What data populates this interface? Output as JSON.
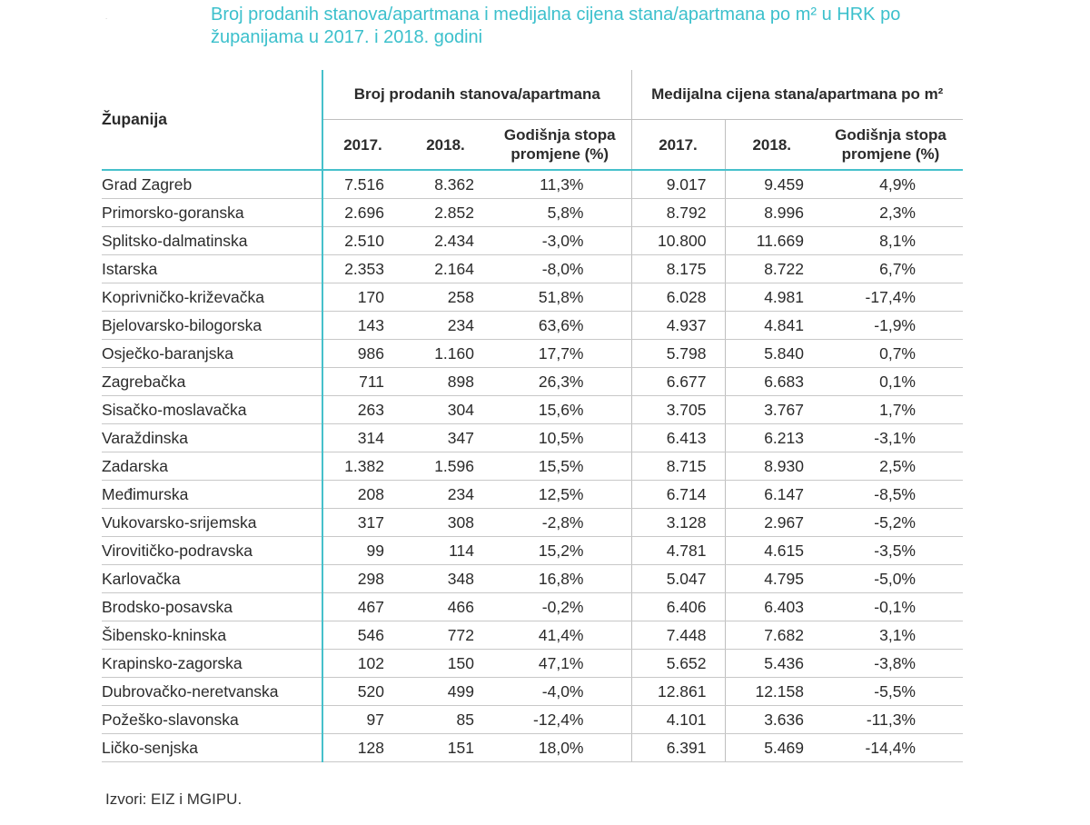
{
  "title": "Broj prodanih stanova/apartmana i medijalna cijena stana/apartmana po m² u HRK po županijama u 2017. i 2018. godini",
  "table": {
    "county_header": "Županija",
    "group1_header": "Broj prodanih stanova/apartmana",
    "group2_header": "Medijalna cijena stana/apartmana po m²",
    "sub_headers": [
      "2017.",
      "2018.",
      "Godišnja stopa promjene (%)",
      "2017.",
      "2018.",
      "Godišnja stopa promjene (%)"
    ],
    "rows": [
      {
        "county": "Grad Zagreb",
        "sold_2017": "7.516",
        "sold_2018": "8.362",
        "sold_rate": "11,3%",
        "price_2017": "9.017",
        "price_2018": "9.459",
        "price_rate": "4,9%"
      },
      {
        "county": "Primorsko-goranska",
        "sold_2017": "2.696",
        "sold_2018": "2.852",
        "sold_rate": "5,8%",
        "price_2017": "8.792",
        "price_2018": "8.996",
        "price_rate": "2,3%"
      },
      {
        "county": "Splitsko-dalmatinska",
        "sold_2017": "2.510",
        "sold_2018": "2.434",
        "sold_rate": "-3,0%",
        "price_2017": "10.800",
        "price_2018": "11.669",
        "price_rate": "8,1%"
      },
      {
        "county": "Istarska",
        "sold_2017": "2.353",
        "sold_2018": "2.164",
        "sold_rate": "-8,0%",
        "price_2017": "8.175",
        "price_2018": "8.722",
        "price_rate": "6,7%"
      },
      {
        "county": "Koprivničko-križevačka",
        "sold_2017": "170",
        "sold_2018": "258",
        "sold_rate": "51,8%",
        "price_2017": "6.028",
        "price_2018": "4.981",
        "price_rate": "-17,4%"
      },
      {
        "county": "Bjelovarsko-bilogorska",
        "sold_2017": "143",
        "sold_2018": "234",
        "sold_rate": "63,6%",
        "price_2017": "4.937",
        "price_2018": "4.841",
        "price_rate": "-1,9%"
      },
      {
        "county": "Osječko-baranjska",
        "sold_2017": "986",
        "sold_2018": "1.160",
        "sold_rate": "17,7%",
        "price_2017": "5.798",
        "price_2018": "5.840",
        "price_rate": "0,7%"
      },
      {
        "county": "Zagrebačka",
        "sold_2017": "711",
        "sold_2018": "898",
        "sold_rate": "26,3%",
        "price_2017": "6.677",
        "price_2018": "6.683",
        "price_rate": "0,1%"
      },
      {
        "county": "Sisačko-moslavačka",
        "sold_2017": "263",
        "sold_2018": "304",
        "sold_rate": "15,6%",
        "price_2017": "3.705",
        "price_2018": "3.767",
        "price_rate": "1,7%"
      },
      {
        "county": "Varaždinska",
        "sold_2017": "314",
        "sold_2018": "347",
        "sold_rate": "10,5%",
        "price_2017": "6.413",
        "price_2018": "6.213",
        "price_rate": "-3,1%"
      },
      {
        "county": "Zadarska",
        "sold_2017": "1.382",
        "sold_2018": "1.596",
        "sold_rate": "15,5%",
        "price_2017": "8.715",
        "price_2018": "8.930",
        "price_rate": "2,5%"
      },
      {
        "county": "Međimurska",
        "sold_2017": "208",
        "sold_2018": "234",
        "sold_rate": "12,5%",
        "price_2017": "6.714",
        "price_2018": "6.147",
        "price_rate": "-8,5%"
      },
      {
        "county": "Vukovarsko-srijemska",
        "sold_2017": "317",
        "sold_2018": "308",
        "sold_rate": "-2,8%",
        "price_2017": "3.128",
        "price_2018": "2.967",
        "price_rate": "-5,2%"
      },
      {
        "county": "Virovitičko-podravska",
        "sold_2017": "99",
        "sold_2018": "114",
        "sold_rate": "15,2%",
        "price_2017": "4.781",
        "price_2018": "4.615",
        "price_rate": "-3,5%"
      },
      {
        "county": "Karlovačka",
        "sold_2017": "298",
        "sold_2018": "348",
        "sold_rate": "16,8%",
        "price_2017": "5.047",
        "price_2018": "4.795",
        "price_rate": "-5,0%"
      },
      {
        "county": "Brodsko-posavska",
        "sold_2017": "467",
        "sold_2018": "466",
        "sold_rate": "-0,2%",
        "price_2017": "6.406",
        "price_2018": "6.403",
        "price_rate": "-0,1%"
      },
      {
        "county": "Šibensko-kninska",
        "sold_2017": "546",
        "sold_2018": "772",
        "sold_rate": "41,4%",
        "price_2017": "7.448",
        "price_2018": "7.682",
        "price_rate": "3,1%"
      },
      {
        "county": "Krapinsko-zagorska",
        "sold_2017": "102",
        "sold_2018": "150",
        "sold_rate": "47,1%",
        "price_2017": "5.652",
        "price_2018": "5.436",
        "price_rate": "-3,8%"
      },
      {
        "county": "Dubrovačko-neretvanska",
        "sold_2017": "520",
        "sold_2018": "499",
        "sold_rate": "-4,0%",
        "price_2017": "12.861",
        "price_2018": "12.158",
        "price_rate": "-5,5%"
      },
      {
        "county": "Požeško-slavonska",
        "sold_2017": "97",
        "sold_2018": "85",
        "sold_rate": "-12,4%",
        "price_2017": "4.101",
        "price_2018": "3.636",
        "price_rate": "-11,3%"
      },
      {
        "county": "Ličko-senjska",
        "sold_2017": "128",
        "sold_2018": "151",
        "sold_rate": "18,0%",
        "price_2017": "6.391",
        "price_2018": "5.469",
        "price_rate": "-14,4%"
      }
    ]
  },
  "source": "Izvori: EIZ i MGIPU.",
  "colors": {
    "accent": "#3cc0cc",
    "text": "#2b2b2b",
    "rule": "#c8c8c8"
  }
}
